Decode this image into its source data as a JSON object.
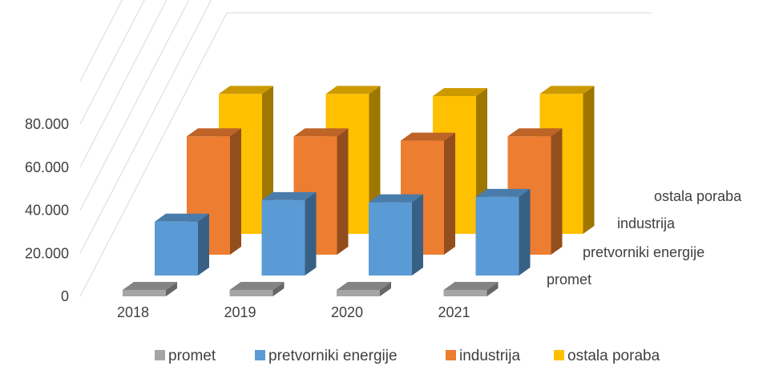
{
  "chart_data": {
    "type": "bar",
    "variant": "3d-column",
    "title": "",
    "xlabel": "",
    "ylabel": "",
    "categories": [
      "2018",
      "2019",
      "2020",
      "2021"
    ],
    "ylim": [
      0,
      80000
    ],
    "yticks": [
      "0",
      "20.000",
      "40.000",
      "60.000",
      "80.000"
    ],
    "grid": true,
    "legend_position": "bottom",
    "series": [
      {
        "name": "promet",
        "color": "#a5a5a5",
        "values": [
          1500,
          1600,
          1500,
          1600
        ]
      },
      {
        "name": "pretvorniki energije",
        "color": "#5b9bd5",
        "values": [
          25000,
          35000,
          34000,
          36500
        ]
      },
      {
        "name": "industrija",
        "color": "#ed7d31",
        "values": [
          55000,
          55000,
          53000,
          55000
        ]
      },
      {
        "name": "ostala poraba",
        "color": "#ffc000",
        "values": [
          65000,
          65000,
          64000,
          65000
        ]
      }
    ]
  }
}
